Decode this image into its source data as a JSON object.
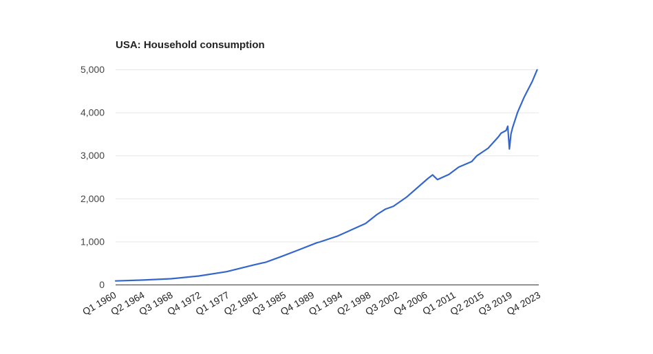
{
  "chart_data": {
    "type": "line",
    "title": "USA: Household consumption",
    "xlabel": "",
    "ylabel": "",
    "ylim": [
      0,
      5000
    ],
    "yticks": [
      0,
      1000,
      2000,
      3000,
      4000,
      5000
    ],
    "ytick_labels": [
      "0",
      "1,000",
      "2,000",
      "3,000",
      "4,000",
      "5,000"
    ],
    "xtick_labels": [
      "Q1 1960",
      "Q2 1964",
      "Q3 1968",
      "Q4 1972",
      "Q1 1977",
      "Q2 1981",
      "Q3 1985",
      "Q4 1989",
      "Q1 1994",
      "Q2 1998",
      "Q3 2002",
      "Q4 2006",
      "Q1 2011",
      "Q2 2015",
      "Q3 2019",
      "Q4 2023"
    ],
    "grid": true,
    "legend": "none",
    "colors": {
      "line": "#3366cc"
    },
    "series": [
      {
        "x": [
          1960.0,
          1964.25,
          1968.5,
          1972.75,
          1977.0,
          1981.25,
          1983.0,
          1985.5,
          1987.75,
          1990.75,
          1991.25,
          1994.0,
          1998.25,
          2000.0,
          2001.25,
          2002.5,
          2004.5,
          2007.75,
          2008.5,
          2009.25,
          2011.0,
          2012.5,
          2014.5,
          2015.25,
          2017.0,
          2018.5,
          2019.0,
          2019.75,
          2020.0,
          2020.25,
          2020.5,
          2020.75,
          2021.5,
          2022.5,
          2023.0,
          2023.75,
          2024.5
        ],
        "y": [
          85,
          105,
          135,
          200,
          300,
          460,
          520,
          660,
          790,
          970,
          990,
          1130,
          1420,
          1630,
          1750,
          1820,
          2030,
          2460,
          2550,
          2440,
          2560,
          2730,
          2860,
          2990,
          3170,
          3420,
          3520,
          3580,
          3680,
          3150,
          3500,
          3650,
          4000,
          4350,
          4500,
          4720,
          4990
        ]
      }
    ]
  }
}
